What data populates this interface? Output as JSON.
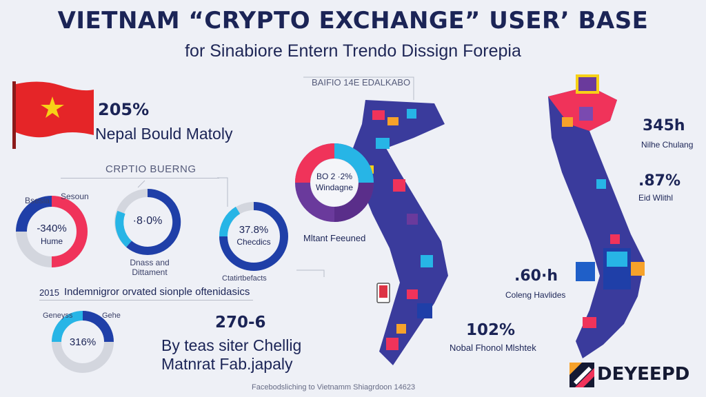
{
  "header": {
    "title": "VIETNAM “CRYPTO EXCHANGE” USER’ BASE",
    "subtitle": "for Sinabiore Entern Trendo Dissign Forepia"
  },
  "left_panel": {
    "flag_stat": "205%",
    "flag_caption": "Nepal Bould Matoly",
    "section_label": "CRPTIO BUERNG",
    "donut1": {
      "value": "-340%",
      "label": "Hume",
      "tag_left": "Bsesla",
      "tag_right": "Sesoun"
    },
    "donut2": {
      "value": "·8·0%",
      "caption": "Dnass and Dittament"
    },
    "donut3": {
      "value": "37.8%",
      "label": "Checdics",
      "caption": "Ctatirtbefacts"
    },
    "note_year": "2015",
    "note_text": "Indemnigror orvated sionple oftenidasics",
    "donut4": {
      "value": "316%",
      "tag_left": "Geneyss",
      "tag_right": "Gehe"
    },
    "bottom_stat": "270-6",
    "bottom_caption_1": "By teas siter Chellig",
    "bottom_caption_2": "Matnrat Fab.japaly"
  },
  "center_panel": {
    "map_label": "BAIFIO 14E EDALKABO",
    "donut_text_1": "BO 2 ·2%",
    "donut_text_2": "Windagne",
    "donut_caption": "Mltant Feeuned",
    "stat": "102%",
    "stat_caption": "Nobal Fhonol Mlshtek"
  },
  "right_panel": {
    "stat1": "345h",
    "stat1_caption": "Nilhe Chulang",
    "stat2": ".87%",
    "stat2_caption": "Eid Wlithl",
    "stat3": ".60·h",
    "stat3_caption": "Coleng Havlides"
  },
  "footer": {
    "source": "Facebodsliching to Vietnamm Shiagrdoon 14623",
    "logo_text": "DEYEEPD"
  },
  "colors": {
    "navy": "#1b2456",
    "blue": "#1f3fa8",
    "cyan": "#27b5e6",
    "pink": "#f0335a",
    "purple": "#6a3a9c",
    "grey": "#c9cdd6",
    "flag_red": "#e52528",
    "flag_star": "#f7d117"
  }
}
